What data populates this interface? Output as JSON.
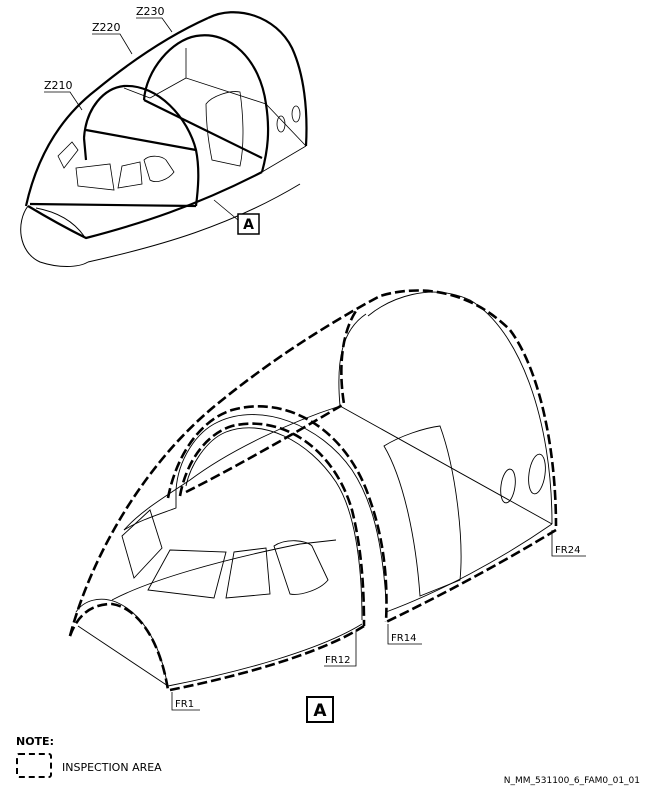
{
  "zones": {
    "z210": "Z210",
    "z220": "Z220",
    "z230": "Z230"
  },
  "callouts": {
    "view_ref_top": "A",
    "view_ref_bottom": "A"
  },
  "frames": {
    "fr1": "FR1",
    "fr12": "FR12",
    "fr14": "FR14",
    "fr24": "FR24"
  },
  "note": {
    "title": "NOTE:",
    "legend_label": "INSPECTION AREA"
  },
  "figure_id": "N_MM_531100_6_FAM0_01_01"
}
